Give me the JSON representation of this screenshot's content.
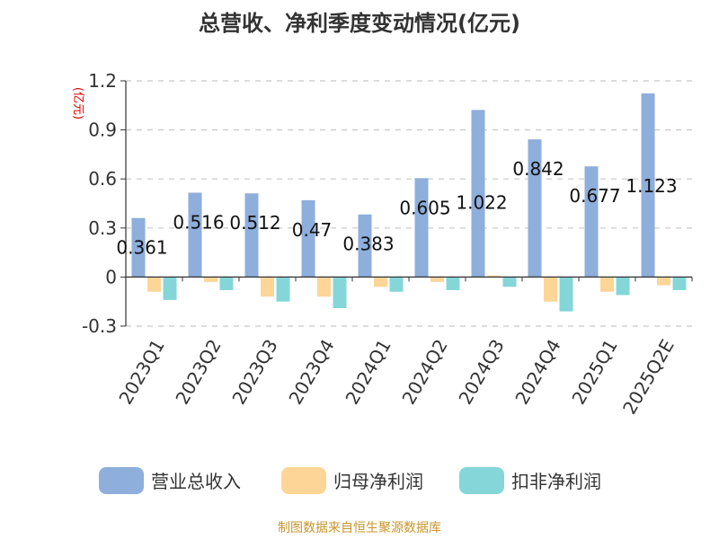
{
  "chart_data": {
    "type": "bar",
    "title": "总营收、净利季度变动情况(亿元)",
    "unit_label": "(亿元)",
    "categories": [
      "2023Q1",
      "2023Q2",
      "2023Q3",
      "2023Q4",
      "2024Q1",
      "2024Q2",
      "2024Q3",
      "2024Q4",
      "2025Q1",
      "2025Q2E"
    ],
    "series": [
      {
        "name": "营业总收入",
        "color": "#8eaedb",
        "values": [
          0.361,
          0.516,
          0.512,
          0.47,
          0.383,
          0.605,
          1.022,
          0.842,
          0.677,
          1.123
        ],
        "labels": [
          "0.361",
          "0.516",
          "0.512",
          "0.47",
          "0.383",
          "0.605",
          "1.022",
          "0.842",
          "0.677",
          "1.123"
        ]
      },
      {
        "name": "归母净利润",
        "color": "#fdd597",
        "values": [
          -0.09,
          -0.03,
          -0.12,
          -0.12,
          -0.06,
          -0.03,
          0.01,
          -0.15,
          -0.09,
          -0.05
        ]
      },
      {
        "name": "扣非净利润",
        "color": "#84d6d8",
        "values": [
          -0.14,
          -0.08,
          -0.15,
          -0.19,
          -0.09,
          -0.08,
          -0.06,
          -0.21,
          -0.11,
          -0.08
        ]
      }
    ],
    "ylim": [
      -0.3,
      1.2
    ],
    "yticks": [
      "-0.3",
      "0",
      "0.3",
      "0.6",
      "0.9",
      "1.2"
    ],
    "grid": true,
    "legend_position": "bottom"
  },
  "source_text": "制图数据来自恒生聚源数据库"
}
